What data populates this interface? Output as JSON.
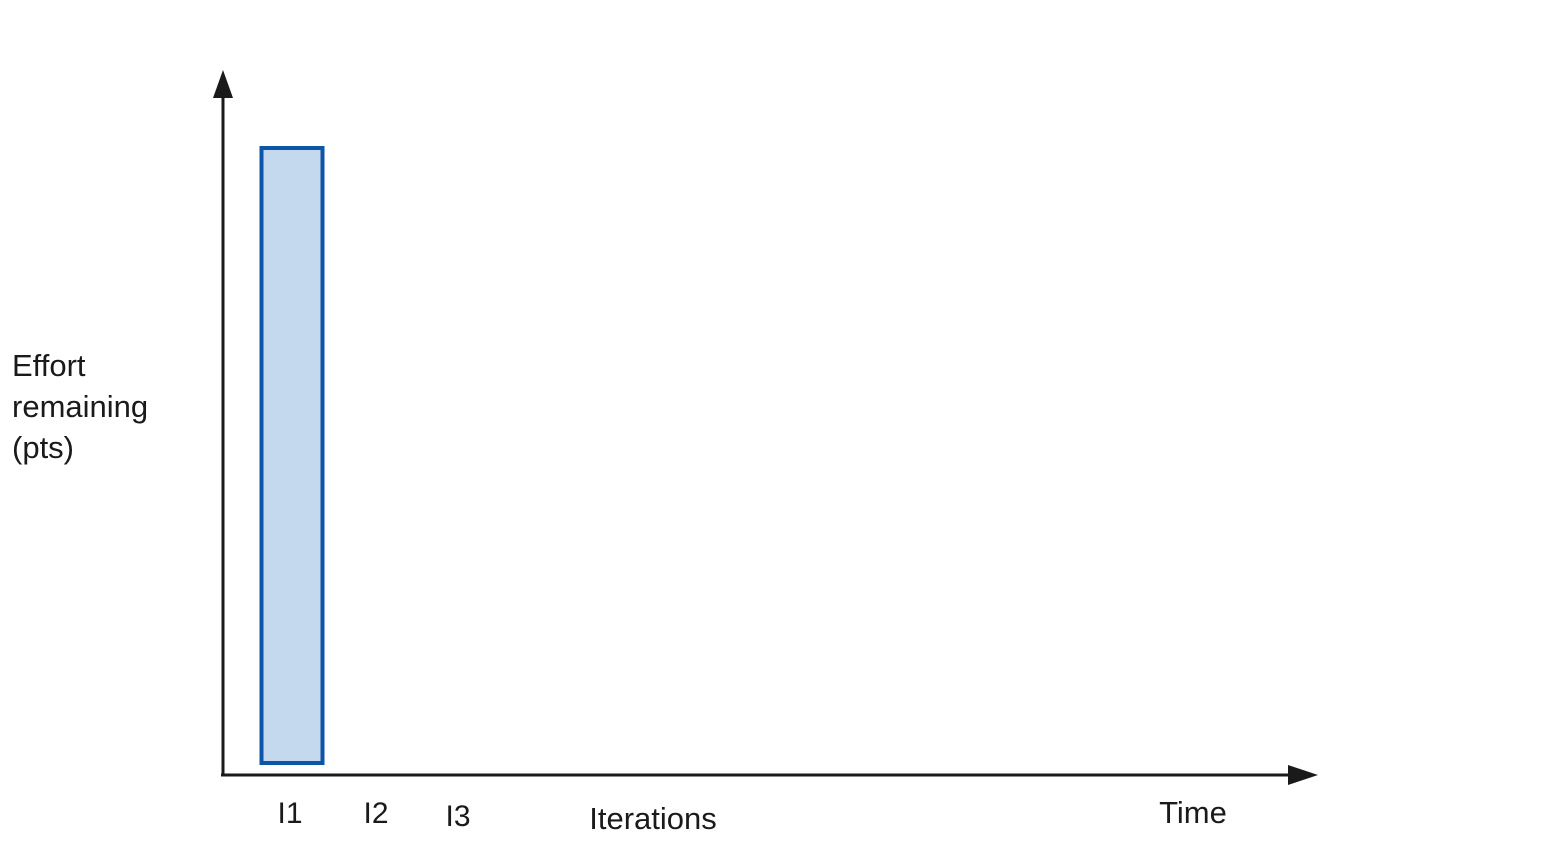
{
  "chart_data": {
    "type": "bar",
    "ylabel_lines": [
      "Effort",
      "remaining",
      "(pts)"
    ],
    "xlabel": "Iterations",
    "x_axis_end_label": "Time",
    "categories": [
      "I1",
      "I2",
      "I3"
    ],
    "values": [
      100,
      0,
      0
    ],
    "ylim": [
      0,
      100
    ],
    "grid": false,
    "colors": {
      "bar_fill": "#c5d9ee",
      "bar_stroke": "#0d55a8",
      "axis": "#1a1a1a"
    }
  }
}
